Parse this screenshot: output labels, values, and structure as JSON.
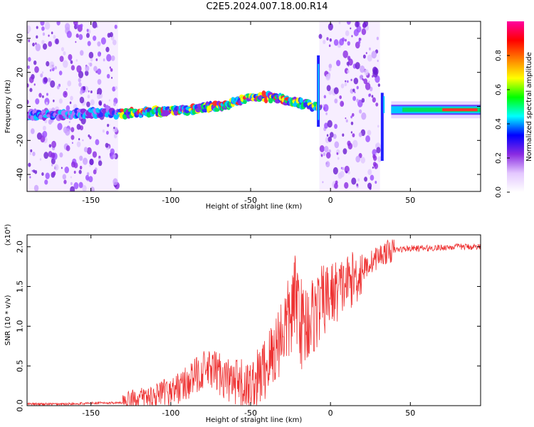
{
  "figure": {
    "title": "C2E5.2024.007.18.00.R14"
  },
  "chart_data": [
    {
      "type": "heatmap",
      "title": "C2E5.2024.007.18.00.R14",
      "xlabel": "Height of straight line (km)",
      "ylabel": "Frequency (Hz)",
      "xlim": [
        -190,
        94
      ],
      "ylim": [
        -50,
        50
      ],
      "x_ticks": [
        -150,
        -100,
        -50,
        0,
        50
      ],
      "y_ticks": [
        -40,
        -20,
        0,
        20,
        40
      ],
      "colorbar": {
        "label": "Normalized spectral amplitude",
        "range": [
          0.0,
          1.0
        ],
        "ticks": [
          "0.0",
          "0.2",
          "0.4",
          "0.6",
          "0.8"
        ],
        "colors": [
          "#ffffff",
          "#e4c8ff",
          "#8a2be2",
          "#0000ff",
          "#00ffff",
          "#00ff00",
          "#ffff00",
          "#ff8000",
          "#ff0000",
          "#ff00a0"
        ]
      },
      "ridge": {
        "name": "",
        "x": [
          -190,
          -170,
          -150,
          -130,
          -110,
          -90,
          -70,
          -55,
          -45,
          -35,
          -25,
          -15,
          -8,
          35,
          40,
          50,
          60,
          70,
          80,
          94
        ],
        "frequency": [
          -5,
          -5,
          -4,
          -4,
          -3,
          -2,
          0,
          4,
          6,
          5,
          3,
          1,
          0,
          -2,
          -1,
          -2,
          -2,
          -2,
          -2,
          -2
        ]
      },
      "noise_regions_x": [
        [
          -190,
          -133
        ],
        [
          -7,
          31
        ]
      ],
      "grid": false
    },
    {
      "type": "line",
      "xlabel": "Height of straight line (km)",
      "ylabel": "SNR (10 * v/v)",
      "y_multiplier": "(x10⁴)",
      "xlim": [
        -190,
        94
      ],
      "ylim": [
        0,
        2.15
      ],
      "x_ticks": [
        -150,
        -100,
        -50,
        0,
        50
      ],
      "y_ticks": [
        "0.0",
        "0.5",
        "1.0",
        "1.5",
        "2.0"
      ],
      "line_color": "#ee3333",
      "series": [
        {
          "x": [
            -190,
            -170,
            -150,
            -130,
            -125,
            -110,
            -100,
            -90,
            -80,
            -70,
            -60,
            -50,
            -45,
            -40,
            -35,
            -30,
            -25,
            -22,
            -20,
            -18,
            -15,
            -10,
            -5,
            0,
            5,
            10,
            15,
            20,
            25,
            30,
            35,
            40,
            50,
            60,
            70,
            80,
            94
          ],
          "values": [
            0.02,
            0.02,
            0.03,
            0.04,
            0.08,
            0.12,
            0.18,
            0.28,
            0.45,
            0.42,
            0.25,
            0.22,
            0.35,
            0.5,
            0.7,
            0.95,
            1.1,
            1.35,
            1.3,
            1.0,
            1.05,
            1.15,
            1.3,
            1.4,
            1.45,
            1.55,
            1.6,
            1.7,
            1.8,
            1.88,
            1.93,
            1.96,
            1.98,
            1.98,
            1.99,
            2.0,
            2.0
          ]
        }
      ],
      "grid": false
    }
  ]
}
